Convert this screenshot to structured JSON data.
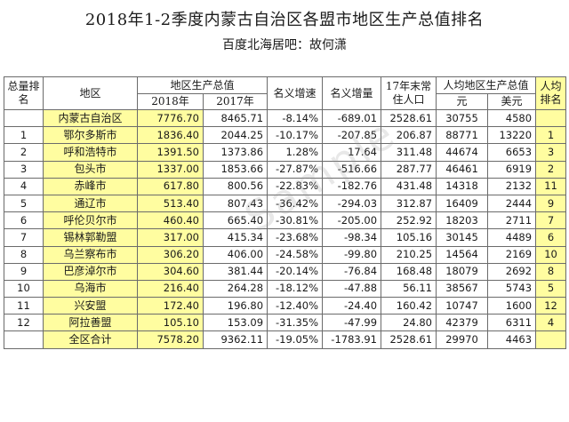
{
  "title": "2018年1-2季度内蒙古自治区各盟市地区生产总值排名",
  "subtitle": "百度北海居吧：故何潇",
  "watermark": "Sample",
  "headers": {
    "total_rank": "总量排名",
    "region": "地区",
    "gdp": "地区生产总值",
    "gdp_2018": "2018年",
    "gdp_2017": "2017年",
    "nominal_growth_rate": "名义增速",
    "nominal_increase": "名义增量",
    "population": "17年末常住人口",
    "per_capita_gdp": "人均地区生产总值",
    "per_capita_yuan": "元",
    "per_capita_usd": "美元",
    "per_capita_rank": "人均排名"
  },
  "rows": [
    {
      "rank": "",
      "region": "内蒙古自治区",
      "gdp2018": "7776.70",
      "gdp2017": "8465.71",
      "growth": "-8.14%",
      "increase": "-689.01",
      "population": "2528.61",
      "pc_yuan": "30755",
      "pc_usd": "4580",
      "pc_rank": ""
    },
    {
      "rank": "1",
      "region": "鄂尔多斯市",
      "gdp2018": "1836.40",
      "gdp2017": "2044.25",
      "growth": "-10.17%",
      "increase": "-207.85",
      "population": "206.87",
      "pc_yuan": "88771",
      "pc_usd": "13220",
      "pc_rank": "1"
    },
    {
      "rank": "2",
      "region": "呼和浩特市",
      "gdp2018": "1391.50",
      "gdp2017": "1373.86",
      "growth": "1.28%",
      "increase": "17.64",
      "population": "311.48",
      "pc_yuan": "44674",
      "pc_usd": "6653",
      "pc_rank": "3"
    },
    {
      "rank": "3",
      "region": "包头市",
      "gdp2018": "1337.00",
      "gdp2017": "1853.66",
      "growth": "-27.87%",
      "increase": "-516.66",
      "population": "287.77",
      "pc_yuan": "46461",
      "pc_usd": "6919",
      "pc_rank": "2"
    },
    {
      "rank": "4",
      "region": "赤峰市",
      "gdp2018": "617.80",
      "gdp2017": "800.56",
      "growth": "-22.83%",
      "increase": "-182.76",
      "population": "431.48",
      "pc_yuan": "14318",
      "pc_usd": "2132",
      "pc_rank": "11"
    },
    {
      "rank": "5",
      "region": "通辽市",
      "gdp2018": "513.40",
      "gdp2017": "807.43",
      "growth": "-36.42%",
      "increase": "-294.03",
      "population": "312.87",
      "pc_yuan": "16409",
      "pc_usd": "2444",
      "pc_rank": "9"
    },
    {
      "rank": "6",
      "region": "呼伦贝尔市",
      "gdp2018": "460.40",
      "gdp2017": "665.40",
      "growth": "-30.81%",
      "increase": "-205.00",
      "population": "252.92",
      "pc_yuan": "18203",
      "pc_usd": "2711",
      "pc_rank": "7"
    },
    {
      "rank": "7",
      "region": "锡林郭勒盟",
      "gdp2018": "317.00",
      "gdp2017": "415.34",
      "growth": "-23.68%",
      "increase": "-98.34",
      "population": "105.16",
      "pc_yuan": "30145",
      "pc_usd": "4489",
      "pc_rank": "6"
    },
    {
      "rank": "8",
      "region": "乌兰察布市",
      "gdp2018": "306.20",
      "gdp2017": "406.00",
      "growth": "-24.58%",
      "increase": "-99.80",
      "population": "210.25",
      "pc_yuan": "14564",
      "pc_usd": "2169",
      "pc_rank": "10"
    },
    {
      "rank": "9",
      "region": "巴彦淖尔市",
      "gdp2018": "304.60",
      "gdp2017": "381.44",
      "growth": "-20.14%",
      "increase": "-76.84",
      "population": "168.48",
      "pc_yuan": "18079",
      "pc_usd": "2692",
      "pc_rank": "8"
    },
    {
      "rank": "10",
      "region": "乌海市",
      "gdp2018": "216.40",
      "gdp2017": "264.28",
      "growth": "-18.12%",
      "increase": "-47.88",
      "population": "56.11",
      "pc_yuan": "38567",
      "pc_usd": "5743",
      "pc_rank": "5"
    },
    {
      "rank": "11",
      "region": "兴安盟",
      "gdp2018": "172.40",
      "gdp2017": "196.80",
      "growth": "-12.40%",
      "increase": "-24.40",
      "population": "160.42",
      "pc_yuan": "10747",
      "pc_usd": "1600",
      "pc_rank": "12"
    },
    {
      "rank": "12",
      "region": "阿拉善盟",
      "gdp2018": "105.10",
      "gdp2017": "153.09",
      "growth": "-31.35%",
      "increase": "-47.99",
      "population": "24.80",
      "pc_yuan": "42379",
      "pc_usd": "6311",
      "pc_rank": "4"
    },
    {
      "rank": "",
      "region": "全区合计",
      "gdp2018": "7578.20",
      "gdp2017": "9362.11",
      "growth": "-19.05%",
      "increase": "-1783.91",
      "population": "2528.61",
      "pc_yuan": "29970",
      "pc_usd": "4463",
      "pc_rank": ""
    }
  ]
}
